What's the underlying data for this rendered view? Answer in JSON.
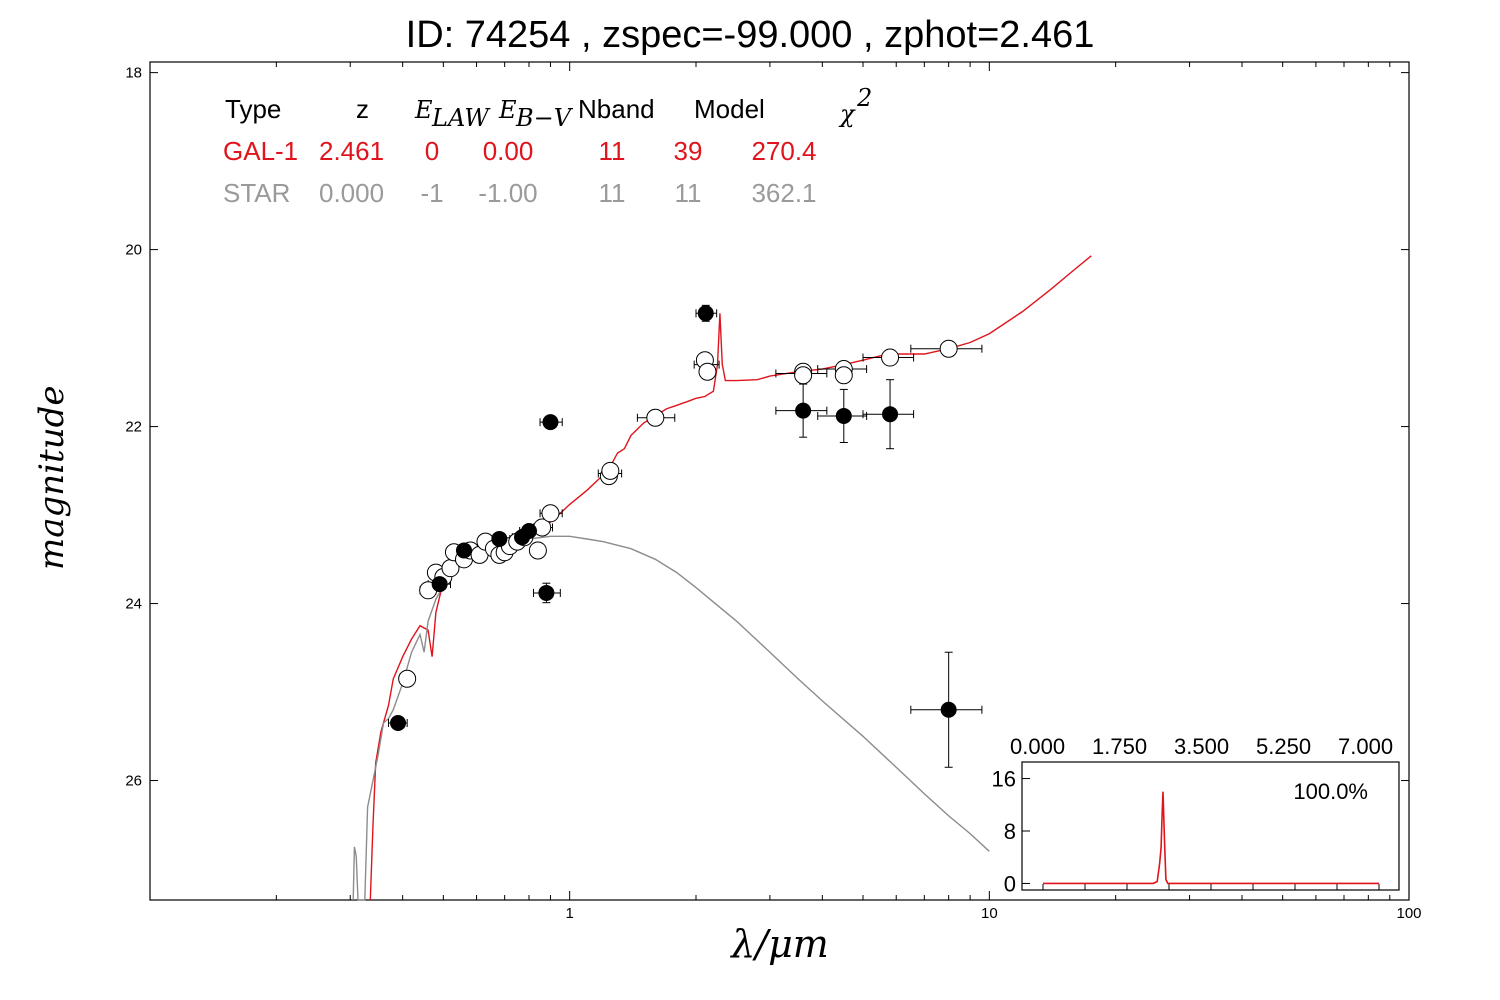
{
  "title": "ID:  74254 , zspec=-99.000 , zphot=2.461",
  "colors": {
    "galaxy": "#e0141c",
    "star": "#8c8c8c",
    "point": "#000000"
  },
  "fit_table": {
    "headers": [
      "Type",
      "z",
      "E",
      "LAW",
      "E",
      "B−V",
      "Nband",
      "Model",
      "χ",
      "2"
    ],
    "rows": [
      {
        "color": "#e0141c",
        "cells": [
          "GAL-1",
          "2.461",
          "0",
          "0.00",
          "11",
          "39",
          "270.4"
        ]
      },
      {
        "color": "#9a9a9a",
        "cells": [
          "STAR",
          "0.000",
          "-1",
          "-1.00",
          "11",
          "11",
          "362.1"
        ]
      }
    ]
  },
  "chart_data": {
    "type": "scatter",
    "title": "ID:  74254 , zspec=-99.000 , zphot=2.461",
    "xlabel": "λ/μm",
    "ylabel": "magnitude",
    "xscale": "log",
    "xlim": [
      0.1,
      100
    ],
    "ylim": [
      27.35,
      17.88
    ],
    "y_inverted": true,
    "x_ticks": [
      "1",
      "10",
      "100"
    ],
    "y_ticks": [
      "18",
      "20",
      "22",
      "24",
      "26"
    ],
    "grid": false,
    "series": [
      {
        "name": "GAL-1",
        "kind": "line",
        "color": "#e0141c",
        "points": [
          [
            0.335,
            27.4
          ],
          [
            0.34,
            26.5
          ],
          [
            0.345,
            25.8
          ],
          [
            0.355,
            25.45
          ],
          [
            0.37,
            25.15
          ],
          [
            0.38,
            24.85
          ],
          [
            0.4,
            24.6
          ],
          [
            0.42,
            24.4
          ],
          [
            0.44,
            24.25
          ],
          [
            0.46,
            24.3
          ],
          [
            0.47,
            24.6
          ],
          [
            0.48,
            24.1
          ],
          [
            0.5,
            23.75
          ],
          [
            0.53,
            23.6
          ],
          [
            0.56,
            23.5
          ],
          [
            0.6,
            23.42
          ],
          [
            0.65,
            23.35
          ],
          [
            0.7,
            23.3
          ],
          [
            0.75,
            23.27
          ],
          [
            0.8,
            23.22
          ],
          [
            0.85,
            23.15
          ],
          [
            0.9,
            23.08
          ],
          [
            0.95,
            22.98
          ],
          [
            1.0,
            22.88
          ],
          [
            1.1,
            22.72
          ],
          [
            1.2,
            22.55
          ],
          [
            1.25,
            22.45
          ],
          [
            1.3,
            22.3
          ],
          [
            1.35,
            22.25
          ],
          [
            1.4,
            22.1
          ],
          [
            1.5,
            21.96
          ],
          [
            1.6,
            21.88
          ],
          [
            1.7,
            21.8
          ],
          [
            1.8,
            21.76
          ],
          [
            1.9,
            21.72
          ],
          [
            2.0,
            21.68
          ],
          [
            2.1,
            21.66
          ],
          [
            2.2,
            21.6
          ],
          [
            2.25,
            21.3
          ],
          [
            2.28,
            20.72
          ],
          [
            2.31,
            21.3
          ],
          [
            2.35,
            21.48
          ],
          [
            2.5,
            21.48
          ],
          [
            2.8,
            21.47
          ],
          [
            3.0,
            21.43
          ],
          [
            3.5,
            21.38
          ],
          [
            4.0,
            21.35
          ],
          [
            4.5,
            21.3
          ],
          [
            5.0,
            21.25
          ],
          [
            5.5,
            21.2
          ],
          [
            6.0,
            21.18
          ],
          [
            7.0,
            21.18
          ],
          [
            8.0,
            21.12
          ],
          [
            9.0,
            21.05
          ],
          [
            10.0,
            20.95
          ],
          [
            12.0,
            20.7
          ],
          [
            14.0,
            20.45
          ],
          [
            16.0,
            20.22
          ],
          [
            17.5,
            20.07
          ]
        ]
      },
      {
        "name": "STAR",
        "kind": "line",
        "color": "#8c8c8c",
        "points": [
          [
            0.305,
            27.4
          ],
          [
            0.307,
            26.75
          ],
          [
            0.31,
            26.85
          ],
          [
            0.313,
            27.4
          ],
          [
            0.325,
            27.4
          ],
          [
            0.33,
            26.3
          ],
          [
            0.34,
            26.0
          ],
          [
            0.35,
            25.7
          ],
          [
            0.36,
            25.35
          ],
          [
            0.37,
            25.3
          ],
          [
            0.38,
            25.2
          ],
          [
            0.4,
            24.9
          ],
          [
            0.42,
            24.55
          ],
          [
            0.44,
            24.35
          ],
          [
            0.45,
            24.55
          ],
          [
            0.46,
            24.2
          ],
          [
            0.48,
            23.95
          ],
          [
            0.5,
            23.8
          ],
          [
            0.55,
            23.55
          ],
          [
            0.6,
            23.45
          ],
          [
            0.65,
            23.38
          ],
          [
            0.7,
            23.32
          ],
          [
            0.8,
            23.27
          ],
          [
            0.9,
            23.24
          ],
          [
            1.0,
            23.24
          ],
          [
            1.1,
            23.27
          ],
          [
            1.2,
            23.3
          ],
          [
            1.4,
            23.38
          ],
          [
            1.6,
            23.5
          ],
          [
            1.8,
            23.65
          ],
          [
            2.0,
            23.82
          ],
          [
            2.5,
            24.2
          ],
          [
            3.0,
            24.55
          ],
          [
            3.5,
            24.85
          ],
          [
            4.0,
            25.1
          ],
          [
            5.0,
            25.5
          ],
          [
            6.0,
            25.85
          ],
          [
            7.0,
            26.15
          ],
          [
            8.0,
            26.4
          ],
          [
            9.0,
            26.6
          ],
          [
            10.0,
            26.8
          ]
        ]
      },
      {
        "name": "detections",
        "kind": "points",
        "fill": "#ffffff",
        "points": [
          [
            0.41,
            24.85
          ],
          [
            0.46,
            23.85
          ],
          [
            0.48,
            23.65
          ],
          [
            0.5,
            23.7
          ],
          [
            0.52,
            23.6
          ],
          [
            0.53,
            23.42
          ],
          [
            0.56,
            23.5
          ],
          [
            0.58,
            23.4
          ],
          [
            0.61,
            23.45
          ],
          [
            0.63,
            23.3
          ],
          [
            0.66,
            23.38
          ],
          [
            0.68,
            23.45
          ],
          [
            0.7,
            23.42
          ],
          [
            0.72,
            23.35
          ],
          [
            0.75,
            23.3
          ],
          [
            0.78,
            23.25
          ],
          [
            0.84,
            23.4
          ],
          [
            0.86,
            23.14
          ],
          [
            0.9,
            22.98
          ],
          [
            1.24,
            22.56
          ],
          [
            1.25,
            22.5
          ],
          [
            1.6,
            21.9
          ],
          [
            2.1,
            21.25
          ],
          [
            2.13,
            21.38
          ],
          [
            3.6,
            21.38
          ],
          [
            3.6,
            21.42
          ],
          [
            4.5,
            21.35
          ],
          [
            4.5,
            21.42
          ],
          [
            5.8,
            21.22
          ],
          [
            8.0,
            21.12
          ]
        ]
      },
      {
        "name": "filled",
        "kind": "points",
        "fill": "#000000",
        "points": [
          [
            0.39,
            25.35
          ],
          [
            0.49,
            23.78
          ],
          [
            0.56,
            23.4
          ],
          [
            0.68,
            23.27
          ],
          [
            0.77,
            23.25
          ],
          [
            0.8,
            23.18
          ],
          [
            0.88,
            23.88
          ],
          [
            0.9,
            21.95
          ],
          [
            2.11,
            20.72
          ],
          [
            3.6,
            21.82
          ],
          [
            4.5,
            21.88
          ],
          [
            5.8,
            21.86
          ],
          [
            8.0,
            25.2
          ]
        ]
      }
    ],
    "error_bars": [
      {
        "x": 0.39,
        "y": 25.35,
        "xlo": 0.37,
        "xhi": 0.41,
        "ylo": 25.3,
        "yhi": 25.4
      },
      {
        "x": 0.49,
        "y": 23.78,
        "xlo": 0.46,
        "xhi": 0.52,
        "ylo": 23.75,
        "yhi": 23.81
      },
      {
        "x": 0.56,
        "y": 23.4,
        "xlo": 0.53,
        "xhi": 0.59,
        "ylo": 23.37,
        "yhi": 23.43
      },
      {
        "x": 0.68,
        "y": 23.27,
        "xlo": 0.65,
        "xhi": 0.72,
        "ylo": 23.24,
        "yhi": 23.3
      },
      {
        "x": 0.77,
        "y": 23.25,
        "xlo": 0.73,
        "xhi": 0.81,
        "ylo": 23.22,
        "yhi": 23.28
      },
      {
        "x": 0.8,
        "y": 23.18,
        "xlo": 0.76,
        "xhi": 0.84,
        "ylo": 23.15,
        "yhi": 23.21
      },
      {
        "x": 0.88,
        "y": 23.88,
        "xlo": 0.82,
        "xhi": 0.95,
        "ylo": 23.77,
        "yhi": 23.99
      },
      {
        "x": 0.9,
        "y": 21.95,
        "xlo": 0.85,
        "xhi": 0.96,
        "ylo": 21.91,
        "yhi": 21.99
      },
      {
        "x": 2.11,
        "y": 20.72,
        "xlo": 2.0,
        "xhi": 2.24,
        "ylo": 20.63,
        "yhi": 20.81
      },
      {
        "x": 3.6,
        "y": 21.82,
        "xlo": 3.1,
        "xhi": 4.1,
        "ylo": 21.52,
        "yhi": 22.12
      },
      {
        "x": 4.5,
        "y": 21.88,
        "xlo": 3.9,
        "xhi": 5.1,
        "ylo": 21.58,
        "yhi": 22.18
      },
      {
        "x": 5.8,
        "y": 21.86,
        "xlo": 5.0,
        "xhi": 6.6,
        "ylo": 21.47,
        "yhi": 22.25
      },
      {
        "x": 8.0,
        "y": 25.2,
        "xlo": 6.5,
        "xhi": 9.6,
        "ylo": 24.55,
        "yhi": 25.85
      },
      {
        "x": 8.0,
        "y": 21.12,
        "xlo": 6.5,
        "xhi": 9.6,
        "ylo": 21.12,
        "yhi": 21.12
      },
      {
        "x": 5.8,
        "y": 21.22,
        "xlo": 5.0,
        "xhi": 6.6,
        "ylo": 21.22,
        "yhi": 21.22
      },
      {
        "x": 4.5,
        "y": 21.35,
        "xlo": 3.9,
        "xhi": 5.1,
        "ylo": 21.35,
        "yhi": 21.35
      },
      {
        "x": 3.6,
        "y": 21.4,
        "xlo": 3.1,
        "xhi": 4.1,
        "ylo": 21.4,
        "yhi": 21.4
      },
      {
        "x": 1.6,
        "y": 21.9,
        "xlo": 1.45,
        "xhi": 1.78,
        "ylo": 21.9,
        "yhi": 21.9
      },
      {
        "x": 1.25,
        "y": 22.53,
        "xlo": 1.17,
        "xhi": 1.33,
        "ylo": 22.53,
        "yhi": 22.53
      },
      {
        "x": 2.12,
        "y": 21.3,
        "xlo": 1.98,
        "xhi": 2.27,
        "ylo": 21.3,
        "yhi": 21.3
      },
      {
        "x": 0.9,
        "y": 22.98,
        "xlo": 0.85,
        "xhi": 0.96,
        "ylo": 22.98,
        "yhi": 22.98
      },
      {
        "x": 0.86,
        "y": 23.14,
        "xlo": 0.82,
        "xhi": 0.91,
        "ylo": 23.14,
        "yhi": 23.14
      },
      {
        "x": 0.46,
        "y": 23.85,
        "xlo": 0.44,
        "xhi": 0.48,
        "ylo": 23.85,
        "yhi": 23.85
      }
    ],
    "inset": {
      "type": "line",
      "color": "#e0141c",
      "xlim": [
        0,
        7
      ],
      "ylim": [
        -1,
        17
      ],
      "x_ticks": [
        "0.000",
        "1.750",
        "3.500",
        "5.250",
        "7.000"
      ],
      "y_ticks": [
        "16",
        "8",
        "0"
      ],
      "annotation": "100.0%",
      "points": [
        [
          0.0,
          0
        ],
        [
          2.3,
          0
        ],
        [
          2.38,
          0.3
        ],
        [
          2.43,
          3
        ],
        [
          2.46,
          5.5
        ],
        [
          2.48,
          10
        ],
        [
          2.5,
          14
        ],
        [
          2.53,
          7
        ],
        [
          2.56,
          0.6
        ],
        [
          2.6,
          0
        ],
        [
          7.0,
          0
        ]
      ]
    }
  }
}
